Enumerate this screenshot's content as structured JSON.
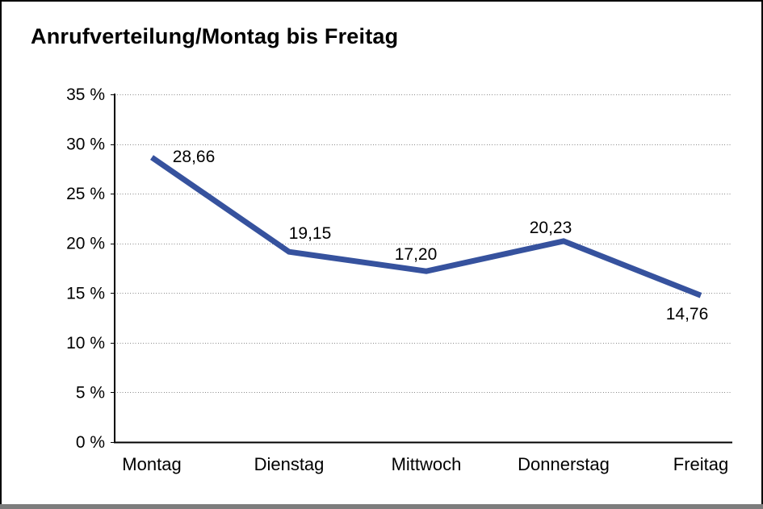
{
  "title": "Anrufverteilung/Montag bis Freitag",
  "chart_data": {
    "type": "line",
    "title": "Anrufverteilung/Montag bis Freitag",
    "categories": [
      "Montag",
      "Dienstag",
      "Mittwoch",
      "Donnerstag",
      "Freitag"
    ],
    "values": [
      28.66,
      19.15,
      17.2,
      20.23,
      14.76
    ],
    "value_labels": [
      "28,66",
      "19,15",
      "17,20",
      "20,23",
      "14,76"
    ],
    "xlabel": "",
    "ylabel": "",
    "ylim": [
      0,
      35
    ],
    "ytick_step": 5,
    "ytick_labels": [
      "0 %",
      "5 %",
      "10 %",
      "15 %",
      "20 %",
      "25 %",
      "30 %",
      "35 %"
    ],
    "grid": "horizontal-dotted",
    "legend": "none",
    "line_color": "#36529E",
    "grid_color": "#8a8a8a",
    "axis_color": "#000000",
    "text_color": "#000000",
    "background": "#FFFFFF"
  }
}
